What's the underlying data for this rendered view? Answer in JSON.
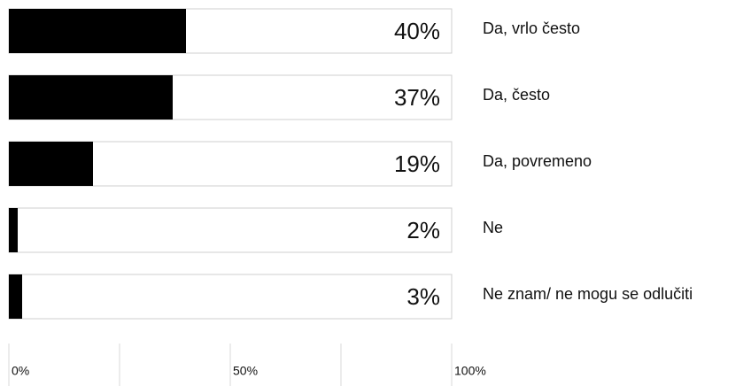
{
  "chart_data": {
    "type": "bar",
    "orientation": "horizontal",
    "categories": [
      "Da, vrlo često",
      "Da, često",
      "Da, povremeno",
      "Ne",
      "Ne znam/ ne mogu se odlučiti"
    ],
    "values": [
      40,
      37,
      19,
      2,
      3
    ],
    "value_labels": [
      "40%",
      "37%",
      "19%",
      "2%",
      "3%"
    ],
    "color": "#000000",
    "xlim": [
      0,
      100
    ],
    "xticks": [
      {
        "value": 0,
        "label": "0%"
      },
      {
        "value": 25,
        "label": null
      },
      {
        "value": 50,
        "label": "50%"
      },
      {
        "value": 75,
        "label": null
      },
      {
        "value": 100,
        "label": "100%"
      }
    ]
  }
}
